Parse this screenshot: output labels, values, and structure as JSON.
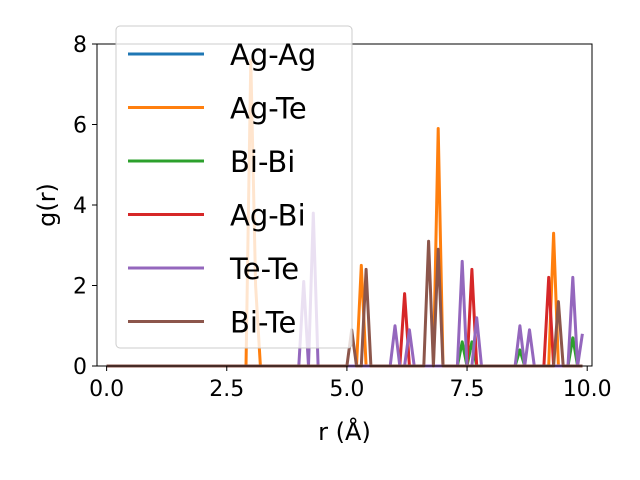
{
  "chart_data": {
    "type": "line",
    "xlabel": "r (Å)",
    "ylabel": "g(r)",
    "xlim": [
      -0.2,
      10.1
    ],
    "ylim": [
      0,
      8
    ],
    "xticks": [
      0.0,
      2.5,
      5.0,
      7.5,
      10.0
    ],
    "xtick_labels": [
      "0.0",
      "2.5",
      "5.0",
      "7.5",
      "10.0"
    ],
    "yticks": [
      0,
      2,
      4,
      6,
      8
    ],
    "ytick_labels": [
      "0",
      "2",
      "4",
      "6",
      "8"
    ],
    "grid": false,
    "legend": "top-left",
    "series": [
      {
        "name": "Ag-Ag",
        "color": "#1f77b4",
        "points": [
          [
            0,
            0
          ],
          [
            9.9,
            0
          ]
        ]
      },
      {
        "name": "Ag-Te",
        "color": "#ff7f0e",
        "points": [
          [
            0,
            0
          ],
          [
            2.9,
            0
          ],
          [
            3.0,
            7.6
          ],
          [
            3.1,
            2.0
          ],
          [
            3.2,
            0
          ],
          [
            5.2,
            0
          ],
          [
            5.3,
            2.5
          ],
          [
            5.4,
            0
          ],
          [
            6.8,
            0
          ],
          [
            6.9,
            5.9
          ],
          [
            7.0,
            0
          ],
          [
            9.2,
            0
          ],
          [
            9.3,
            3.3
          ],
          [
            9.4,
            0
          ],
          [
            9.9,
            0
          ]
        ]
      },
      {
        "name": "Bi-Bi",
        "color": "#2ca02c",
        "points": [
          [
            0,
            0
          ],
          [
            7.3,
            0
          ],
          [
            7.4,
            0.6
          ],
          [
            7.5,
            0
          ],
          [
            7.6,
            0.6
          ],
          [
            7.7,
            0
          ],
          [
            8.5,
            0
          ],
          [
            8.6,
            0.4
          ],
          [
            8.7,
            0
          ],
          [
            9.6,
            0
          ],
          [
            9.7,
            0.7
          ],
          [
            9.8,
            0
          ],
          [
            9.9,
            0
          ]
        ]
      },
      {
        "name": "Ag-Bi",
        "color": "#d62728",
        "points": [
          [
            0,
            0
          ],
          [
            6.1,
            0
          ],
          [
            6.2,
            1.8
          ],
          [
            6.3,
            0
          ],
          [
            7.5,
            0
          ],
          [
            7.6,
            2.4
          ],
          [
            7.7,
            0
          ],
          [
            9.1,
            0
          ],
          [
            9.2,
            2.2
          ],
          [
            9.3,
            0
          ],
          [
            9.8,
            0
          ],
          [
            9.9,
            0
          ]
        ]
      },
      {
        "name": "Te-Te",
        "color": "#9467bd",
        "points": [
          [
            0,
            0
          ],
          [
            4.0,
            0
          ],
          [
            4.1,
            2.1
          ],
          [
            4.2,
            0
          ],
          [
            4.3,
            3.8
          ],
          [
            4.4,
            0
          ],
          [
            5.9,
            0
          ],
          [
            6.0,
            1.0
          ],
          [
            6.1,
            0
          ],
          [
            6.2,
            0
          ],
          [
            6.3,
            0.9
          ],
          [
            6.4,
            0
          ],
          [
            7.3,
            0
          ],
          [
            7.4,
            2.6
          ],
          [
            7.5,
            0
          ],
          [
            7.6,
            0
          ],
          [
            7.7,
            1.2
          ],
          [
            7.8,
            0
          ],
          [
            8.5,
            0
          ],
          [
            8.6,
            1.0
          ],
          [
            8.7,
            0
          ],
          [
            8.8,
            0.9
          ],
          [
            8.9,
            0
          ],
          [
            9.6,
            0
          ],
          [
            9.7,
            2.2
          ],
          [
            9.8,
            0
          ],
          [
            9.9,
            0.8
          ]
        ]
      },
      {
        "name": "Bi-Te",
        "color": "#8c564b",
        "points": [
          [
            0,
            0
          ],
          [
            5.0,
            0
          ],
          [
            5.1,
            0.9
          ],
          [
            5.2,
            0
          ],
          [
            5.3,
            0
          ],
          [
            5.4,
            2.4
          ],
          [
            5.5,
            0
          ],
          [
            6.6,
            0
          ],
          [
            6.7,
            3.1
          ],
          [
            6.8,
            0
          ],
          [
            6.9,
            2.9
          ],
          [
            7.0,
            0
          ],
          [
            9.3,
            0
          ],
          [
            9.4,
            1.6
          ],
          [
            9.5,
            0
          ],
          [
            9.9,
            0
          ]
        ]
      }
    ]
  }
}
